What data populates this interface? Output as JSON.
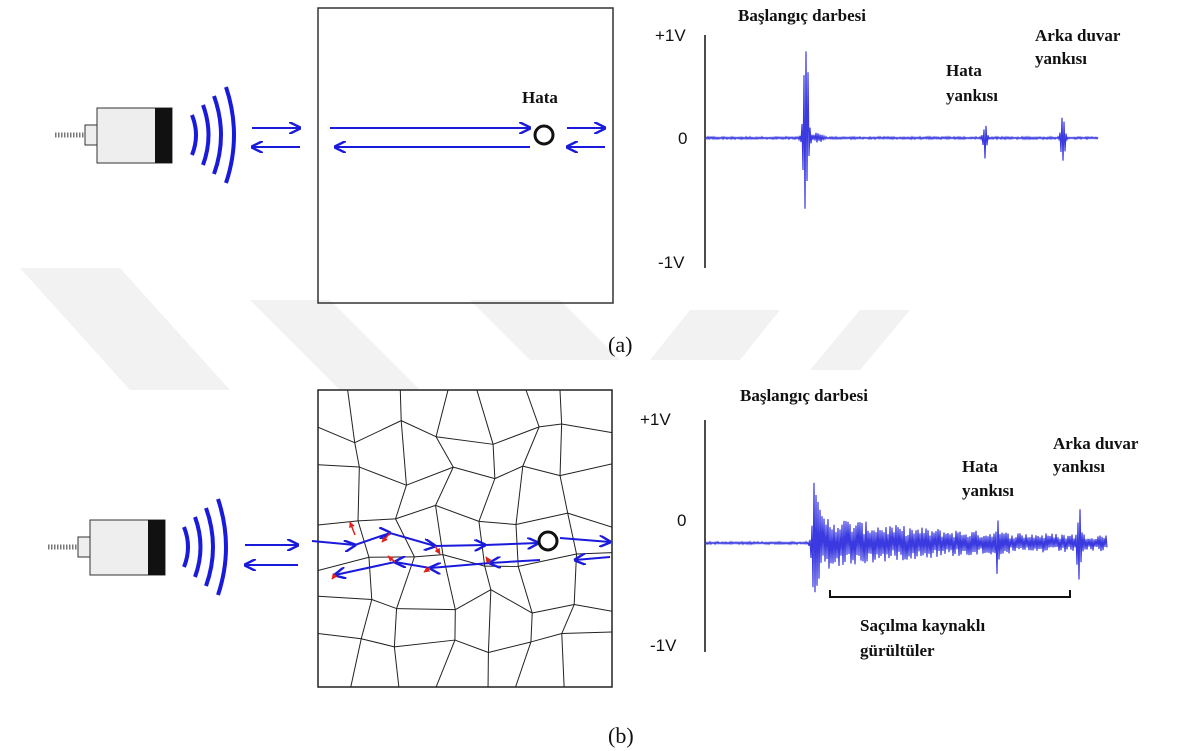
{
  "panels": [
    {
      "label": "(a)",
      "defect_label": "Hata",
      "axis": {
        "top": "+1V",
        "zero": "0",
        "bottom": "-1V"
      },
      "annotations": {
        "initial_pulse": "Başlangıç darbesi",
        "defect_echo": [
          "Hata",
          "yankısı"
        ],
        "back_wall_echo": [
          "Arka duvar",
          "yankısı"
        ]
      }
    },
    {
      "label": "(b)",
      "axis": {
        "top": "+1V",
        "zero": "0",
        "bottom": "-1V"
      },
      "annotations": {
        "initial_pulse": "Başlangıç darbesi",
        "defect_echo": [
          "Hata",
          "yankısı"
        ],
        "back_wall_echo": [
          "Arka duvar",
          "yankısı"
        ],
        "noise": [
          "Saçılma kaynaklı",
          "gürültüler"
        ]
      }
    }
  ]
}
